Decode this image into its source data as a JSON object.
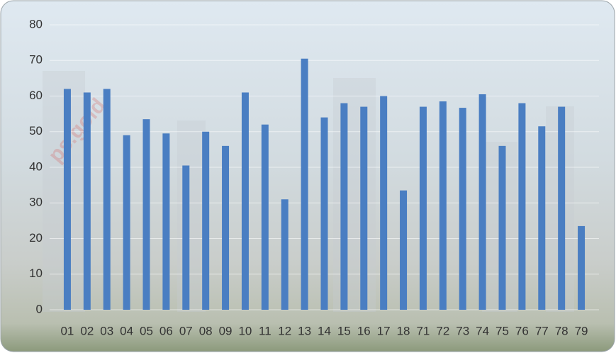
{
  "chart_data": {
    "type": "bar",
    "watermark": "ps.gold",
    "categories": [
      "01",
      "02",
      "03",
      "04",
      "05",
      "06",
      "07",
      "08",
      "09",
      "10",
      "11",
      "12",
      "13",
      "14",
      "15",
      "16",
      "17",
      "18",
      "71",
      "72",
      "73",
      "74",
      "75",
      "76",
      "77",
      "78",
      "79"
    ],
    "values": [
      62,
      61,
      62,
      49,
      53.5,
      49.5,
      40.5,
      50,
      46,
      61,
      52,
      31,
      70.5,
      54,
      58,
      57,
      60,
      33.5,
      57,
      58.5,
      56.7,
      60.5,
      46,
      58,
      51.5,
      57,
      23.5
    ],
    "color": "#4a7ec2",
    "ylim": [
      0,
      80
    ],
    "yticks": [
      0,
      10,
      20,
      30,
      40,
      50,
      60,
      70,
      80
    ],
    "grid": true
  }
}
